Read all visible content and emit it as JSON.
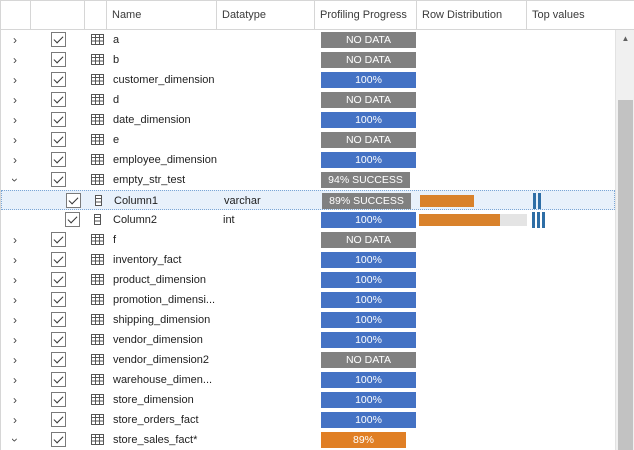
{
  "header": {
    "col_name": "Name",
    "col_datatype": "Datatype",
    "col_progress": "Profiling Progress",
    "col_distribution": "Row Distribution",
    "col_topvalues": "Top values"
  },
  "colors": {
    "no_data": "#808080",
    "complete": "#4472c4",
    "in_progress": "#e07f25",
    "distribution": "#d9822b",
    "top_values": "#2e6ea6",
    "selection": "#e8f1fb"
  },
  "rows": [
    {
      "name": "a",
      "progress": "NO DATA",
      "kind": "table"
    },
    {
      "name": "b",
      "progress": "NO DATA",
      "kind": "table"
    },
    {
      "name": "customer_dimension",
      "progress": "100%",
      "kind": "table"
    },
    {
      "name": "d",
      "progress": "NO DATA",
      "kind": "table"
    },
    {
      "name": "date_dimension",
      "progress": "100%",
      "kind": "table"
    },
    {
      "name": "e",
      "progress": "NO DATA",
      "kind": "table"
    },
    {
      "name": "employee_dimension",
      "progress": "100%",
      "kind": "table"
    },
    {
      "name": "empty_str_test",
      "progress": "94% SUCCESS",
      "kind": "table",
      "expanded": true
    },
    {
      "name": "Column1",
      "datatype": "varchar",
      "progress": "89% SUCCESS",
      "kind": "column",
      "selected": true,
      "distribution": 0.5,
      "top_values_count": 2
    },
    {
      "name": "Column2",
      "datatype": "int",
      "progress": "100%",
      "kind": "column",
      "distribution": 0.75,
      "top_values_count": 3
    },
    {
      "name": "f",
      "progress": "NO DATA",
      "kind": "table"
    },
    {
      "name": "inventory_fact",
      "progress": "100%",
      "kind": "table"
    },
    {
      "name": "product_dimension",
      "progress": "100%",
      "kind": "table"
    },
    {
      "name": "promotion_dimensi...",
      "progress": "100%",
      "kind": "table"
    },
    {
      "name": "shipping_dimension",
      "progress": "100%",
      "kind": "table"
    },
    {
      "name": "vendor_dimension",
      "progress": "100%",
      "kind": "table"
    },
    {
      "name": "vendor_dimension2",
      "progress": "NO DATA",
      "kind": "table"
    },
    {
      "name": "warehouse_dimen...",
      "progress": "100%",
      "kind": "table"
    },
    {
      "name": "store_dimension",
      "progress": "100%",
      "kind": "table"
    },
    {
      "name": "store_orders_fact",
      "progress": "100%",
      "kind": "table"
    },
    {
      "name": "store_sales_fact*",
      "progress": "89%",
      "kind": "table",
      "expanded": true
    }
  ]
}
